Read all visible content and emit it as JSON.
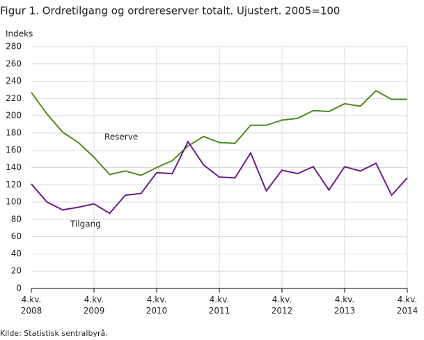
{
  "chart_data": {
    "type": "line",
    "title": "Figur 1. Ordretilgang og ordrereserver totalt. Ujustert. 2005=100",
    "y_label": "Indeks",
    "source": "Kilde: Statistisk sentralbyrå.",
    "categories": [
      "4.kv.\n2008",
      null,
      null,
      null,
      "4.kv.\n2009",
      null,
      null,
      null,
      "4.kv.\n2010",
      null,
      null,
      null,
      "4.kv.\n2011",
      null,
      null,
      null,
      "4.kv.\n2012",
      null,
      null,
      null,
      "4.kv.\n2013",
      null,
      null,
      null,
      "4.kv.\n2014"
    ],
    "series": [
      {
        "name": "Reserve",
        "color": "#4b8a1e",
        "values": [
          227,
          202,
          181,
          169,
          152,
          132,
          136,
          131,
          140,
          148,
          165,
          176,
          169,
          168,
          189,
          189,
          195,
          197,
          206,
          205,
          214,
          211,
          229,
          219,
          219
        ]
      },
      {
        "name": "Tilgang",
        "color": "#6a1b8a",
        "values": [
          121,
          100,
          91,
          94,
          98,
          87,
          108,
          110,
          134,
          133,
          170,
          143,
          129,
          128,
          157,
          113,
          137,
          133,
          141,
          114,
          141,
          136,
          145,
          108,
          128
        ]
      }
    ],
    "ylim": [
      0,
      280
    ],
    "yticks": [
      0,
      20,
      40,
      60,
      80,
      100,
      120,
      140,
      160,
      180,
      200,
      220,
      240,
      260,
      280
    ],
    "grid": true
  }
}
